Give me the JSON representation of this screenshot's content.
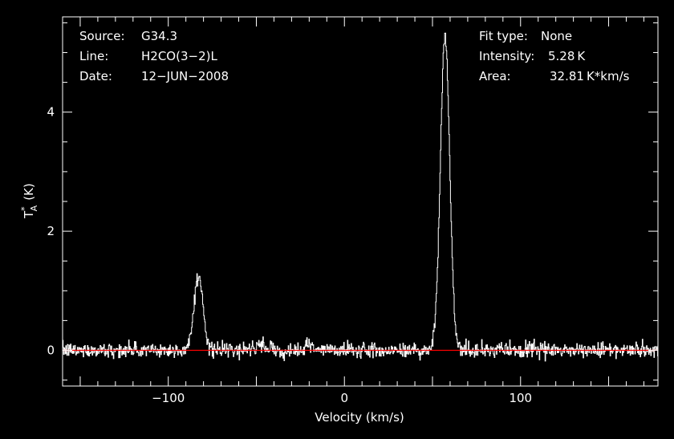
{
  "header_left": {
    "source_label": "Source:",
    "source_value": "G34.3",
    "line_label": "Line:",
    "line_value": "H2CO(3−2)L",
    "date_label": "Date:",
    "date_value": "12−JUN−2008"
  },
  "header_right": {
    "fit_label": "Fit type:",
    "fit_value": "None",
    "intensity_label": "Intensity:",
    "intensity_value": "5.28 K",
    "area_label": "Area:",
    "area_value": "32.81 K*km/s"
  },
  "colors": {
    "background": "#000000",
    "spectrum": "#ffffff",
    "baseline": "#ff0000",
    "frame": "#ffffff"
  },
  "chart_data": {
    "type": "line",
    "xlabel": "Velocity (km/s)",
    "ylabel_main": "T",
    "ylabel_sup": "*",
    "ylabel_sub": "A",
    "ylabel_unit": "(K)",
    "xlim": [
      -160,
      178
    ],
    "ylim": [
      -0.6,
      5.6
    ],
    "xticks": [
      -100,
      0,
      100
    ],
    "xtick_labels": [
      "−100",
      "0",
      "100"
    ],
    "yticks": [
      0,
      2,
      4
    ],
    "ytick_labels": [
      "0",
      "2",
      "4"
    ],
    "grid": false,
    "baseline_y": 0,
    "noise_rms": 0.06,
    "channel_width": 0.3,
    "components": [
      {
        "center": -83,
        "amplitude": 1.25,
        "fwhm": 6
      },
      {
        "center": 57,
        "amplitude": 5.28,
        "fwhm": 6.2
      },
      {
        "center": -48,
        "amplitude": 0.1,
        "fwhm": 5
      },
      {
        "center": -20,
        "amplitude": 0.1,
        "fwhm": 4
      }
    ]
  }
}
